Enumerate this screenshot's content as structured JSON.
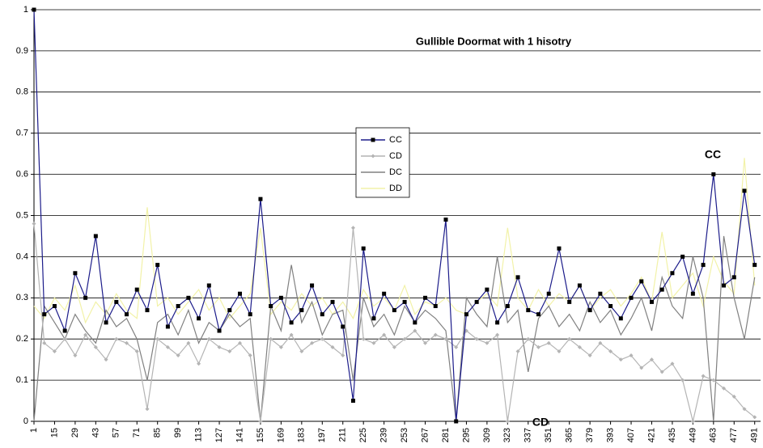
{
  "chart_data": {
    "type": "line",
    "title": "Gullible Doormat with 1 hisotry",
    "annotations": [
      "CC",
      "CD"
    ],
    "x": [
      1,
      8,
      15,
      22,
      29,
      36,
      43,
      50,
      57,
      64,
      71,
      78,
      85,
      92,
      99,
      106,
      113,
      120,
      127,
      134,
      141,
      148,
      155,
      162,
      169,
      176,
      183,
      190,
      197,
      204,
      211,
      218,
      225,
      232,
      239,
      246,
      253,
      260,
      267,
      274,
      281,
      288,
      295,
      302,
      309,
      316,
      323,
      330,
      337,
      344,
      351,
      358,
      365,
      372,
      379,
      386,
      393,
      400,
      407,
      414,
      421,
      428,
      435,
      442,
      449,
      456,
      463,
      470,
      477,
      484,
      491
    ],
    "xlim": [
      1,
      495
    ],
    "xticks": [
      1,
      15,
      29,
      43,
      57,
      71,
      85,
      99,
      113,
      127,
      141,
      155,
      169,
      183,
      197,
      211,
      225,
      239,
      253,
      267,
      281,
      295,
      309,
      323,
      337,
      351,
      365,
      379,
      393,
      407,
      421,
      435,
      449,
      463,
      477,
      491
    ],
    "ylim": [
      0,
      1
    ],
    "yticks": [
      0,
      0.1,
      0.2,
      0.3,
      0.4,
      0.5,
      0.6,
      0.7,
      0.8,
      0.9,
      1
    ],
    "grid": true,
    "series": [
      {
        "name": "CC",
        "color": "#1c1c8a",
        "marker": "square",
        "values": [
          1.0,
          0.26,
          0.28,
          0.22,
          0.36,
          0.3,
          0.45,
          0.24,
          0.29,
          0.26,
          0.32,
          0.27,
          0.38,
          0.23,
          0.28,
          0.3,
          0.25,
          0.33,
          0.22,
          0.27,
          0.31,
          0.26,
          0.54,
          0.28,
          0.3,
          0.24,
          0.27,
          0.33,
          0.26,
          0.29,
          0.23,
          0.05,
          0.42,
          0.25,
          0.31,
          0.27,
          0.29,
          0.24,
          0.3,
          0.28,
          0.49,
          0.0,
          0.26,
          0.29,
          0.32,
          0.24,
          0.28,
          0.35,
          0.27,
          0.26,
          0.31,
          0.42,
          0.29,
          0.33,
          0.27,
          0.31,
          0.28,
          0.25,
          0.3,
          0.34,
          0.29,
          0.32,
          0.36,
          0.4,
          0.31,
          0.38,
          0.6,
          0.33,
          0.35,
          0.56,
          0.38
        ]
      },
      {
        "name": "CD",
        "color": "#b4b4b4",
        "marker": "diamond",
        "values": [
          0.48,
          0.19,
          0.17,
          0.2,
          0.16,
          0.21,
          0.18,
          0.15,
          0.2,
          0.19,
          0.17,
          0.03,
          0.2,
          0.18,
          0.16,
          0.19,
          0.14,
          0.2,
          0.18,
          0.17,
          0.19,
          0.16,
          0.0,
          0.2,
          0.18,
          0.21,
          0.17,
          0.19,
          0.2,
          0.18,
          0.16,
          0.47,
          0.2,
          0.19,
          0.21,
          0.18,
          0.2,
          0.22,
          0.19,
          0.21,
          0.2,
          0.18,
          0.22,
          0.2,
          0.19,
          0.21,
          0.0,
          0.17,
          0.2,
          0.18,
          0.19,
          0.17,
          0.2,
          0.18,
          0.16,
          0.19,
          0.17,
          0.15,
          0.16,
          0.13,
          0.15,
          0.12,
          0.14,
          0.1,
          0.0,
          0.11,
          0.1,
          0.08,
          0.06,
          0.03,
          0.01
        ]
      },
      {
        "name": "DC",
        "color": "#808080",
        "marker": "none",
        "values": [
          0.0,
          0.28,
          0.24,
          0.2,
          0.26,
          0.22,
          0.19,
          0.27,
          0.23,
          0.25,
          0.2,
          0.1,
          0.24,
          0.26,
          0.21,
          0.27,
          0.19,
          0.24,
          0.22,
          0.26,
          0.23,
          0.25,
          0.0,
          0.28,
          0.22,
          0.38,
          0.24,
          0.29,
          0.21,
          0.26,
          0.27,
          0.1,
          0.3,
          0.23,
          0.26,
          0.21,
          0.28,
          0.24,
          0.27,
          0.25,
          0.22,
          0.0,
          0.3,
          0.26,
          0.23,
          0.4,
          0.24,
          0.27,
          0.12,
          0.25,
          0.28,
          0.23,
          0.26,
          0.22,
          0.29,
          0.24,
          0.27,
          0.21,
          0.25,
          0.3,
          0.22,
          0.35,
          0.28,
          0.25,
          0.4,
          0.3,
          0.0,
          0.45,
          0.3,
          0.2,
          0.35
        ]
      },
      {
        "name": "DD",
        "color": "#f2f2a8",
        "marker": "none",
        "values": [
          0.28,
          0.25,
          0.3,
          0.27,
          0.33,
          0.24,
          0.29,
          0.26,
          0.31,
          0.27,
          0.25,
          0.52,
          0.28,
          0.3,
          0.26,
          0.29,
          0.32,
          0.27,
          0.3,
          0.25,
          0.28,
          0.31,
          0.47,
          0.26,
          0.29,
          0.27,
          0.31,
          0.28,
          0.3,
          0.26,
          0.29,
          0.25,
          0.32,
          0.28,
          0.3,
          0.27,
          0.33,
          0.26,
          0.29,
          0.28,
          0.3,
          0.27,
          0.26,
          0.29,
          0.31,
          0.28,
          0.47,
          0.3,
          0.27,
          0.32,
          0.28,
          0.31,
          0.29,
          0.33,
          0.27,
          0.3,
          0.32,
          0.28,
          0.31,
          0.35,
          0.29,
          0.46,
          0.3,
          0.33,
          0.36,
          0.28,
          0.4,
          0.34,
          0.31,
          0.64,
          0.33
        ]
      }
    ]
  }
}
